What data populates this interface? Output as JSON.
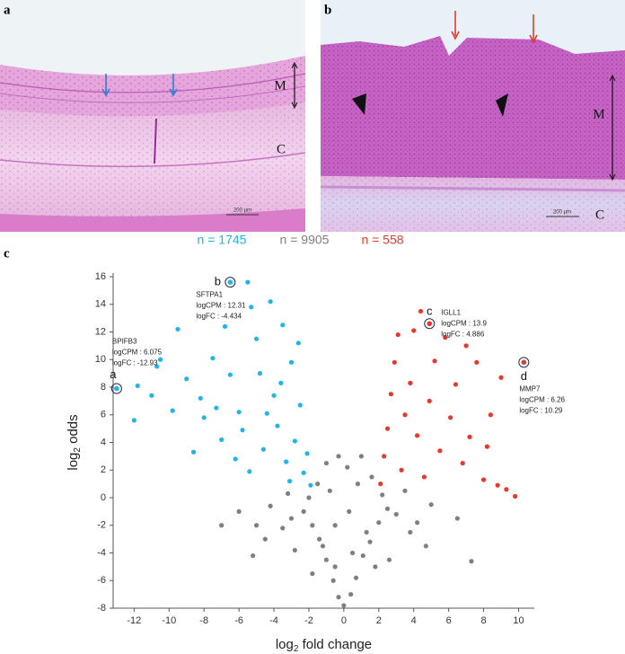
{
  "panels": [
    {
      "label": "a",
      "layer_labels": [
        "M",
        "C"
      ],
      "scale_bar": "200 µm"
    },
    {
      "label": "b",
      "layer_labels": [
        "M",
        "C"
      ],
      "scale_bar": "200 µm"
    }
  ],
  "chart_data": {
    "type": "scatter",
    "label": "c",
    "x_label": {
      "base": "log",
      "sub": "2",
      "tail": " fold change"
    },
    "y_label": {
      "base": "log",
      "sub": "2",
      "tail": " odds"
    },
    "xlim": [
      -13.2,
      10.9
    ],
    "ylim": [
      -8,
      16
    ],
    "xticks": [
      -12,
      -10,
      -8,
      -6,
      -4,
      -2,
      0,
      2,
      4,
      6,
      8,
      10
    ],
    "yticks": [
      -8,
      -6,
      -4,
      -2,
      0,
      2,
      4,
      6,
      8,
      10,
      12,
      14,
      16
    ],
    "series": [
      {
        "name": "n = 1745",
        "color": "#1fb5e8",
        "x": [
          -12,
          -11.8,
          -10.5,
          -10.7,
          -9.5,
          -9,
          -8.2,
          -8,
          -7.5,
          -7,
          -6.8,
          -6.5,
          -6,
          -5.5,
          -5.3,
          -5,
          -4.8,
          -4.6,
          -4.2,
          -4,
          -3.8,
          -3.5,
          -3.3,
          -3,
          -2.8,
          -2.5,
          -2.3,
          -2.1,
          -1.9,
          -3.1,
          -11,
          -9.8,
          -8.6,
          -6.2,
          -5.8,
          -4.4,
          -3.6,
          -2.6,
          -5.4,
          -7.3
        ],
        "y": [
          5.6,
          8.1,
          10,
          9.5,
          12.2,
          8.6,
          7.2,
          5.8,
          10.1,
          4.2,
          12.4,
          8.9,
          6.2,
          15.6,
          13.8,
          11.5,
          9,
          3.5,
          14.2,
          7.4,
          5.2,
          12.5,
          2.6,
          9.8,
          4.1,
          6.7,
          1.8,
          3.2,
          0.9,
          1.2,
          7.4,
          6.3,
          3.3,
          2.8,
          4.9,
          6.1,
          8.3,
          11.2,
          1.9,
          6.5
        ]
      },
      {
        "name": "n = 9905",
        "color": "#7f7f7f",
        "x": [
          0,
          -0.3,
          0.4,
          -0.6,
          0.7,
          -1,
          1.1,
          -1.4,
          1.5,
          -1.8,
          2,
          -2.3,
          2.5,
          -0.5,
          0.5,
          -1.2,
          1.3,
          -2,
          2.2,
          -1.5,
          1.6,
          -1,
          1,
          -0.5,
          0.3,
          -3,
          3,
          -3.5,
          3.8,
          -4.5,
          4.7,
          -5.2,
          7.3,
          -4.2,
          5,
          -6,
          6.5,
          -2.8,
          2.6,
          -0.8,
          0.8,
          -0.3,
          0.2,
          -1.8,
          1.8,
          -3.2,
          3.5,
          -7,
          -5,
          4.2
        ],
        "y": [
          -7.8,
          -7.2,
          -7,
          -6,
          -5.8,
          -4.5,
          -4.2,
          -3,
          -3.2,
          -2,
          -1.8,
          -1,
          -0.8,
          -5,
          -4,
          -3.5,
          -2.5,
          0,
          0.2,
          1,
          1.5,
          2.5,
          3,
          -2,
          -1,
          -1.5,
          -1.2,
          -2.2,
          -2.5,
          -3,
          -3.5,
          -4.2,
          -4.6,
          -0.6,
          -0.5,
          -1,
          -1.5,
          -3.8,
          -4.5,
          0.5,
          1,
          3,
          2.2,
          -5.5,
          -5,
          0.3,
          0.5,
          -2,
          -2,
          -1.8
        ]
      },
      {
        "name": "n = 558",
        "color": "#e8382c",
        "x": [
          2.1,
          2.3,
          2.5,
          2.7,
          2.9,
          3.1,
          3.3,
          3.5,
          3.8,
          4,
          4.2,
          4.4,
          4.6,
          4.9,
          5.2,
          5.5,
          5.8,
          6.1,
          6.4,
          6.8,
          7.2,
          7.6,
          8,
          8.4,
          8.8,
          9.3,
          9.8,
          8.2,
          7,
          9
        ],
        "y": [
          1,
          3,
          5,
          7.5,
          9.8,
          11.8,
          2,
          6,
          8.3,
          12.1,
          4.5,
          13.5,
          1.5,
          7,
          9.9,
          3.4,
          11.6,
          5.8,
          8.2,
          2.5,
          4.4,
          9.8,
          1.3,
          6,
          0.9,
          0.6,
          0.1,
          3.7,
          11,
          8.7
        ]
      }
    ],
    "annotations": [
      {
        "label": "a",
        "gene": "BPIFB3",
        "logcpm": "logCPM : 6.075",
        "logfc": "logFC : -12.93",
        "x": -13,
        "y": 7.9,
        "series": 0
      },
      {
        "label": "b",
        "gene": "SFTPA1",
        "logcpm": "logCPM : 12.31",
        "logfc": "logFC : -4.434",
        "x": -6.5,
        "y": 15.6,
        "series": 0
      },
      {
        "label": "c",
        "gene": "IGLL1",
        "logcpm": "logCPM : 13.9",
        "logfc": "logFC : 4.886",
        "x": 4.9,
        "y": 12.6,
        "series": 2
      },
      {
        "label": "d",
        "gene": "MMP7",
        "logcpm": "logCPM : 6.26",
        "logfc": "logFC : 10.29",
        "x": 10.3,
        "y": 9.8,
        "series": 2
      }
    ]
  }
}
